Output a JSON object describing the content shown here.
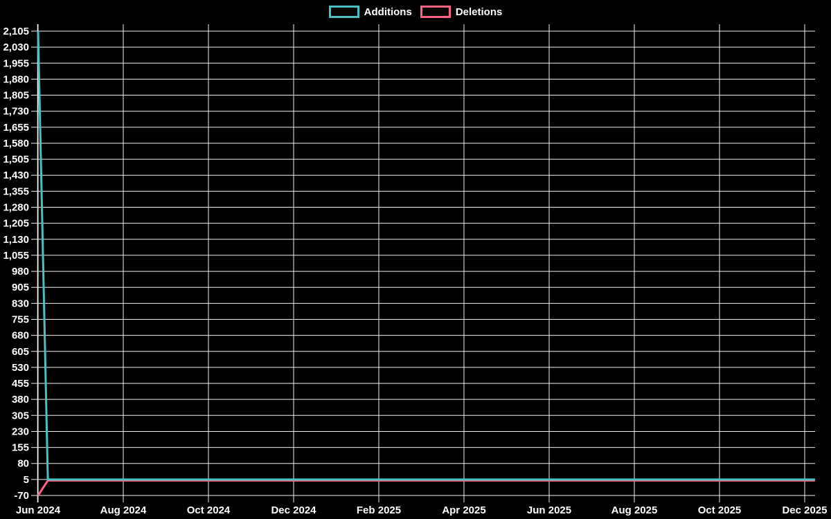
{
  "chart_data": {
    "type": "line",
    "title": "",
    "legend": {
      "position": "top",
      "items": [
        {
          "label": "Additions",
          "color": "#4bc0c0"
        },
        {
          "label": "Deletions",
          "color": "#ff6384"
        }
      ]
    },
    "series": [
      {
        "name": "Additions",
        "color": "#4bc0c0",
        "points": [
          [
            0,
            2105
          ],
          [
            0.23,
            5
          ],
          [
            18.24,
            5
          ]
        ]
      },
      {
        "name": "Deletions",
        "color": "#ff6384",
        "points": [
          [
            0,
            -70
          ],
          [
            0.23,
            0
          ],
          [
            18.24,
            0
          ]
        ]
      }
    ],
    "x_axis": {
      "unit": "months offset from Jun 2024",
      "max_offset": 18.24,
      "ticks": [
        {
          "offset": 0,
          "label": "Jun 2024"
        },
        {
          "offset": 2,
          "label": "Aug 2024"
        },
        {
          "offset": 4,
          "label": "Oct 2024"
        },
        {
          "offset": 6,
          "label": "Dec 2024"
        },
        {
          "offset": 8,
          "label": "Feb 2025"
        },
        {
          "offset": 10,
          "label": "Apr 2025"
        },
        {
          "offset": 12,
          "label": "Jun 2025"
        },
        {
          "offset": 14,
          "label": "Aug 2025"
        },
        {
          "offset": 16,
          "label": "Oct 2025"
        },
        {
          "offset": 18,
          "label": "Dec 2025"
        }
      ]
    },
    "y_axis": {
      "min": -70,
      "max": 2105,
      "step": 75,
      "tick_labels": [
        "2,105",
        "2,030",
        "1,955",
        "1,880",
        "1,805",
        "1,730",
        "1,655",
        "1,580",
        "1,505",
        "1,430",
        "1,355",
        "1,280",
        "1,205",
        "1,130",
        "1,055",
        "980",
        "905",
        "830",
        "755",
        "680",
        "605",
        "530",
        "455",
        "380",
        "305",
        "230",
        "155",
        "80",
        "5",
        "-70"
      ]
    },
    "grid": {
      "on": true,
      "color": "#f2f2f2"
    },
    "colors": {
      "background": "#000000",
      "text": "#ffffff",
      "axis": "#ffffff"
    }
  }
}
